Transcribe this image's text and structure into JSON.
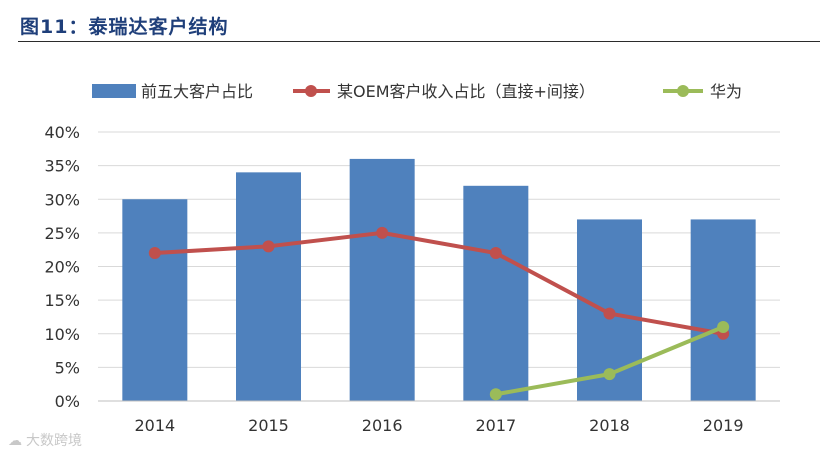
{
  "header": {
    "title": "图11：泰瑞达客户结构"
  },
  "watermark": {
    "text": "大数跨境",
    "icon": "watermark-logo-icon"
  },
  "colors": {
    "bar": "#4f81bd",
    "line_oem": "#c0504d",
    "line_huawei": "#9bbb59",
    "title": "#1f3f7a"
  },
  "chart_data": {
    "type": "bar",
    "title": "图11：泰瑞达客户结构",
    "categories": [
      "2014",
      "2015",
      "2016",
      "2017",
      "2018",
      "2019"
    ],
    "ylim": [
      0,
      40
    ],
    "yticks": [
      "0%",
      "5%",
      "10%",
      "15%",
      "20%",
      "25%",
      "30%",
      "35%",
      "40%"
    ],
    "legend_position": "top",
    "series": [
      {
        "name": "前五大客户占比",
        "type": "bar",
        "values": [
          30,
          34,
          36,
          32,
          27,
          27
        ]
      },
      {
        "name": "某OEM客户收入占比（直接+间接）",
        "type": "line",
        "values": [
          22,
          23,
          25,
          22,
          13,
          10
        ]
      },
      {
        "name": "华为",
        "type": "line",
        "values": [
          null,
          null,
          null,
          1,
          4,
          11
        ]
      }
    ]
  }
}
